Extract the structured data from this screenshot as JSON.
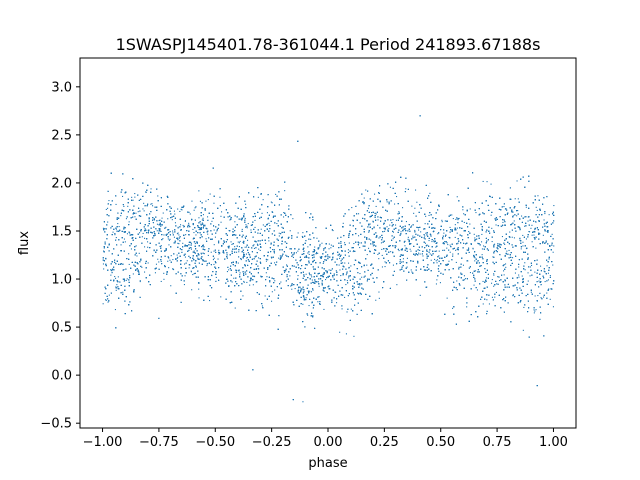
{
  "chart_data": {
    "type": "scatter",
    "title": "1SWASPJ145401.78-361044.1 Period 241893.67188s",
    "xlabel": "phase",
    "ylabel": "flux",
    "xlim": [
      -1.1,
      1.1
    ],
    "ylim": [
      -0.55,
      3.3
    ],
    "xticks": [
      -1.0,
      -0.75,
      -0.5,
      -0.25,
      0.0,
      0.25,
      0.5,
      0.75,
      1.0
    ],
    "xtick_labels": [
      "−1.00",
      "−0.75",
      "−0.50",
      "−0.25",
      "0.00",
      "0.25",
      "0.50",
      "0.75",
      "1.00"
    ],
    "yticks": [
      -0.5,
      0.0,
      0.5,
      1.0,
      1.5,
      2.0,
      2.5,
      3.0
    ],
    "ytick_labels": [
      "−0.5",
      "0.0",
      "0.5",
      "1.0",
      "1.5",
      "2.0",
      "2.5",
      "3.0"
    ],
    "grid": false,
    "series": [
      {
        "color": "#1f77b4",
        "x_range": [
          -1.0,
          1.0
        ],
        "profile": {
          "phase": [
            -1.0,
            -0.95,
            -0.9,
            -0.85,
            -0.8,
            -0.75,
            -0.7,
            -0.65,
            -0.6,
            -0.55,
            -0.5,
            -0.45,
            -0.4,
            -0.35,
            -0.3,
            -0.25,
            -0.2,
            -0.15,
            -0.1,
            -0.05,
            0.0,
            0.05,
            0.1,
            0.15,
            0.2,
            0.25,
            0.3,
            0.35,
            0.4,
            0.45,
            0.5,
            0.55,
            0.6,
            0.65,
            0.7,
            0.75,
            0.8,
            0.85,
            0.9,
            0.95,
            1.0
          ],
          "upper_median": [
            1.5,
            1.55,
            1.6,
            1.65,
            1.65,
            1.55,
            1.45,
            1.4,
            1.45,
            1.5,
            1.5,
            1.5,
            1.45,
            1.4,
            1.5,
            1.55,
            1.45,
            1.3,
            1.2,
            1.2,
            1.2,
            1.3,
            1.4,
            1.55,
            1.6,
            1.6,
            1.55,
            1.5,
            1.45,
            1.5,
            1.5,
            1.5,
            1.45,
            1.4,
            1.5,
            1.55,
            1.6,
            1.6,
            1.55,
            1.5,
            1.5
          ],
          "lower_median": [
            1.05,
            1.0,
            1.05,
            1.2,
            1.3,
            1.35,
            1.35,
            1.35,
            1.3,
            1.25,
            1.2,
            1.15,
            1.15,
            1.1,
            1.0,
            1.05,
            1.1,
            1.0,
            0.9,
            0.95,
            1.0,
            0.95,
            0.9,
            1.0,
            1.2,
            1.3,
            1.35,
            1.35,
            1.3,
            1.25,
            1.2,
            1.15,
            1.15,
            1.1,
            1.0,
            1.05,
            1.1,
            1.05,
            0.95,
            1.0,
            1.05
          ],
          "scatter_sigma": 0.2
        },
        "y_extent": [
          -0.35,
          3.15
        ]
      }
    ]
  }
}
